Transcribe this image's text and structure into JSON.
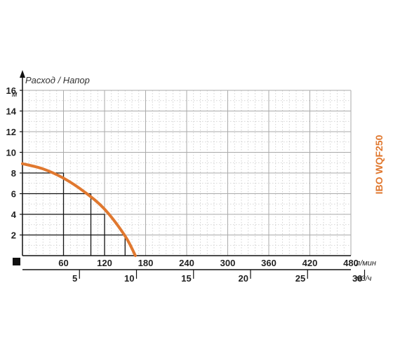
{
  "chart_data": {
    "type": "line",
    "title": "Расход / Напор",
    "model": "IBO WQF250",
    "y_axis": {
      "unit": "м",
      "ticks": [
        2,
        4,
        6,
        8,
        10,
        12,
        14,
        16
      ],
      "ylim": [
        0,
        16
      ]
    },
    "x_axis_primary": {
      "unit": "л/мин",
      "ticks": [
        60,
        120,
        180,
        240,
        300,
        360,
        420,
        480
      ],
      "xlim": [
        0,
        480
      ]
    },
    "x_axis_secondary": {
      "unit": "м3/ч",
      "ticks": [
        5,
        10,
        15,
        20,
        25,
        30
      ],
      "xlim": [
        0,
        28.8
      ]
    },
    "grid": true,
    "series": [
      {
        "color": "#e0782f",
        "x": [
          0,
          30,
          60,
          90,
          120,
          150,
          165
        ],
        "y": [
          8.9,
          8.4,
          7.5,
          6.2,
          4.5,
          1.9,
          0
        ]
      }
    ],
    "reference_lines": [
      {
        "flow": 60,
        "head": 8
      },
      {
        "flow": 100,
        "head": 6
      },
      {
        "flow": 120,
        "head": 4
      },
      {
        "flow": 150,
        "head": 2
      }
    ]
  }
}
